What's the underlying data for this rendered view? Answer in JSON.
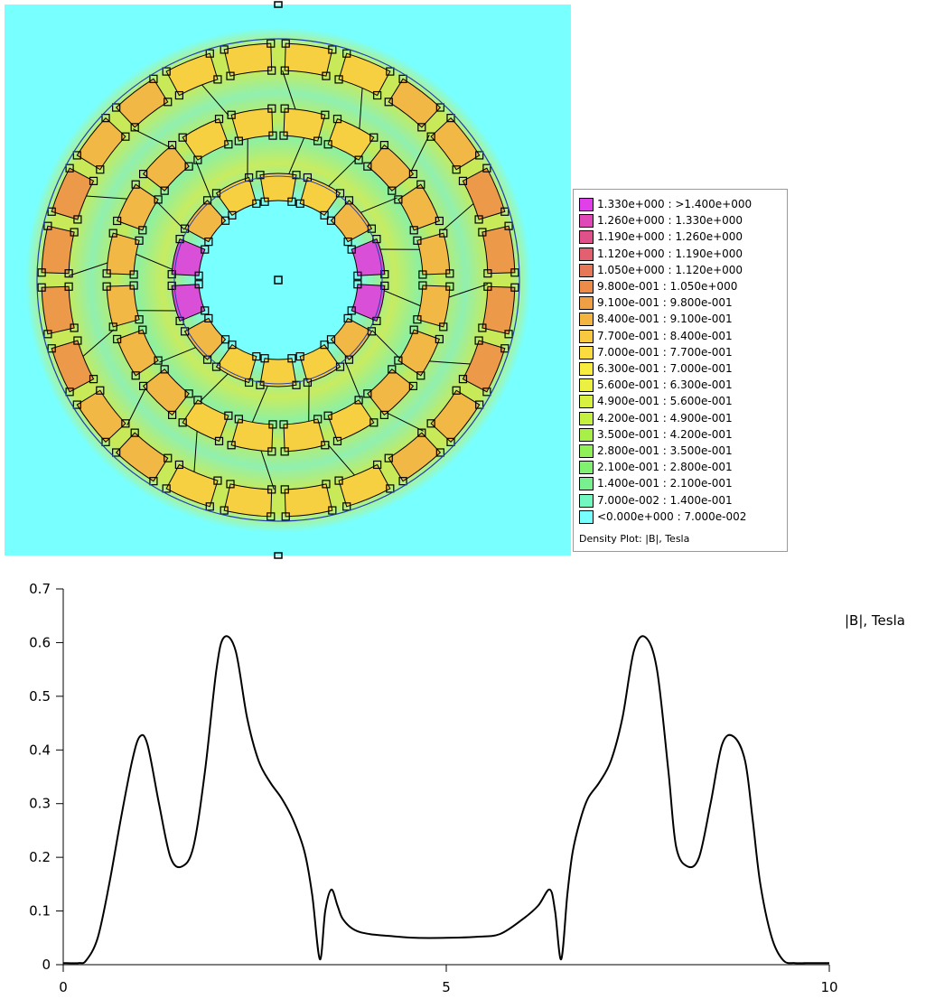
{
  "colors": {
    "background": "#78ffff",
    "ring_low": "#bfe84a",
    "ring_mid": "#f6d040",
    "ring_high": "#ec9a4a",
    "ring_peak": "#d94fd8",
    "outline": "#000000",
    "boundary_blue": "#1f3fb0"
  },
  "legend": {
    "title": "Density Plot: |B|, Tesla",
    "entries": [
      {
        "label": "1.330e+000 : >1.400e+000",
        "color": "#e040e8"
      },
      {
        "label": "1.260e+000 : 1.330e+000",
        "color": "#e048b8"
      },
      {
        "label": "1.190e+000 : 1.260e+000",
        "color": "#e0508a"
      },
      {
        "label": "1.120e+000 : 1.190e+000",
        "color": "#e26070"
      },
      {
        "label": "1.050e+000 : 1.120e+000",
        "color": "#e67858"
      },
      {
        "label": "9.800e-001 : 1.050e+000",
        "color": "#ec8c48"
      },
      {
        "label": "9.100e-001 : 9.800e-001",
        "color": "#f0a044"
      },
      {
        "label": "8.400e-001 : 9.100e-001",
        "color": "#f4b440"
      },
      {
        "label": "7.700e-001 : 8.400e-001",
        "color": "#f8c840"
      },
      {
        "label": "7.000e-001 : 7.700e-001",
        "color": "#fadc40"
      },
      {
        "label": "6.300e-001 : 7.000e-001",
        "color": "#f8ec40"
      },
      {
        "label": "5.600e-001 : 6.300e-001",
        "color": "#ecf040"
      },
      {
        "label": "4.900e-001 : 5.600e-001",
        "color": "#d8f040"
      },
      {
        "label": "4.200e-001 : 4.900e-001",
        "color": "#c4f040"
      },
      {
        "label": "3.500e-001 : 4.200e-001",
        "color": "#a8f048"
      },
      {
        "label": "2.800e-001 : 3.500e-001",
        "color": "#90f058"
      },
      {
        "label": "2.100e-001 : 2.800e-001",
        "color": "#80f070"
      },
      {
        "label": "1.400e-001 : 2.100e-001",
        "color": "#78f090"
      },
      {
        "label": "7.000e-002 : 1.400e-001",
        "color": "#70f8c0"
      },
      {
        "label": "<0.000e+000 : 7.000e-002",
        "color": "#78ffff"
      }
    ]
  },
  "chart_data": {
    "type": "line",
    "title": "",
    "xlabel": "",
    "ylabel": "",
    "xlim": [
      0,
      10
    ],
    "ylim": [
      0,
      0.7
    ],
    "xticks": [
      0,
      5,
      10
    ],
    "yticks": [
      0,
      0.1,
      0.2,
      0.3,
      0.4,
      0.5,
      0.6,
      0.7
    ],
    "xtick_labels": [
      "0",
      "5",
      "10"
    ],
    "ytick_labels": [
      "0",
      "0.1",
      "0.2",
      "0.3",
      "0.4",
      "0.5",
      "0.6",
      "0.7"
    ],
    "grid": false,
    "series": [
      {
        "name": "|B|, Tesla",
        "color": "#000000",
        "x": [
          0,
          0.2,
          0.3,
          0.45,
          0.6,
          0.75,
          0.9,
          1.0,
          1.1,
          1.25,
          1.4,
          1.55,
          1.7,
          1.85,
          2.0,
          2.1,
          2.25,
          2.4,
          2.55,
          2.7,
          2.85,
          3.0,
          3.15,
          3.25,
          3.35,
          3.42,
          3.5,
          3.58,
          3.65,
          3.8,
          4.0,
          4.3,
          4.6,
          5.0,
          5.4,
          5.7,
          6.0,
          6.2,
          6.35,
          6.42,
          6.5,
          6.58,
          6.65,
          6.75,
          6.85,
          7.0,
          7.15,
          7.3,
          7.45,
          7.6,
          7.75,
          7.9,
          8.0,
          8.15,
          8.3,
          8.45,
          8.6,
          8.75,
          8.9,
          9.0,
          9.1,
          9.25,
          9.4,
          9.55,
          9.7,
          9.8,
          10.0
        ],
        "values": [
          0.003,
          0.003,
          0.008,
          0.05,
          0.15,
          0.27,
          0.38,
          0.425,
          0.41,
          0.3,
          0.2,
          0.183,
          0.22,
          0.36,
          0.55,
          0.61,
          0.585,
          0.46,
          0.38,
          0.34,
          0.31,
          0.27,
          0.21,
          0.13,
          0.01,
          0.1,
          0.14,
          0.11,
          0.085,
          0.065,
          0.057,
          0.053,
          0.05,
          0.05,
          0.052,
          0.057,
          0.085,
          0.11,
          0.14,
          0.1,
          0.01,
          0.13,
          0.21,
          0.27,
          0.31,
          0.34,
          0.38,
          0.46,
          0.585,
          0.61,
          0.55,
          0.36,
          0.22,
          0.183,
          0.2,
          0.3,
          0.41,
          0.425,
          0.38,
          0.27,
          0.15,
          0.05,
          0.008,
          0.003,
          0.003,
          0.003,
          0.003
        ]
      }
    ]
  }
}
